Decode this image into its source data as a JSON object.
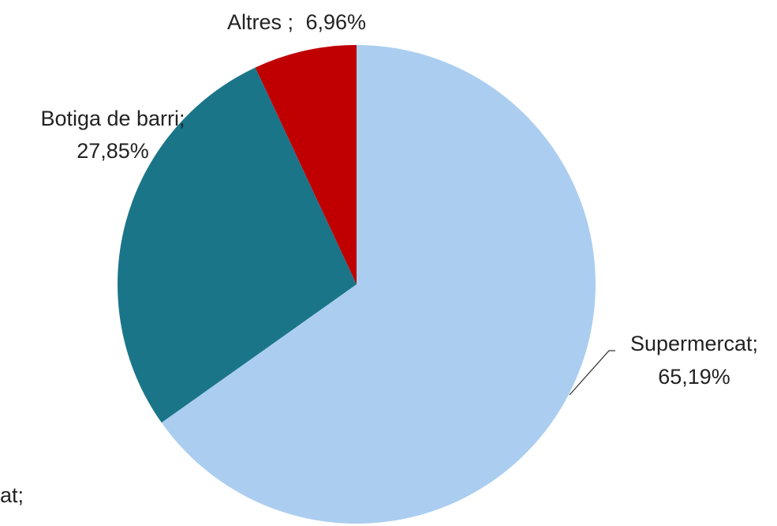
{
  "chart_data": {
    "type": "pie",
    "start_angle_deg": 0,
    "direction": "clockwise",
    "slices": [
      {
        "label": "Supermercat;",
        "value_text": "65,19%",
        "value": 65.19,
        "color": "#abcef0"
      },
      {
        "label": "Botiga de barri;",
        "value_text": "27,85%",
        "value": 27.85,
        "color": "#1b7589"
      },
      {
        "label": "Altres ;",
        "value_text": "6,96%",
        "value": 6.96,
        "color": "#c00000"
      }
    ],
    "stray_label_text": "at;"
  }
}
